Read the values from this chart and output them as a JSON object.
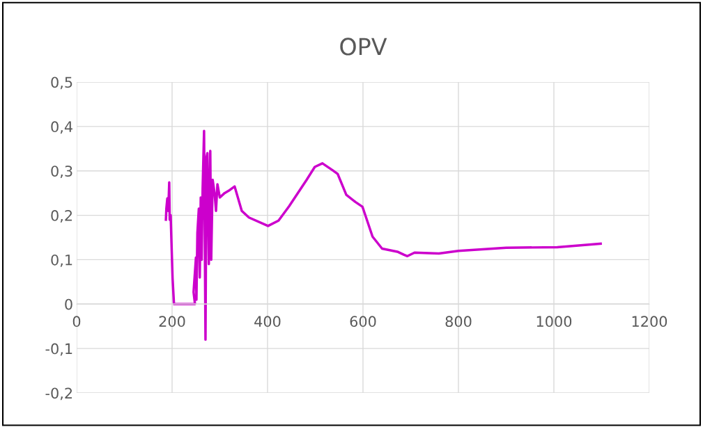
{
  "chart_data": {
    "type": "line",
    "title": "OPV",
    "grid": true,
    "legend": false,
    "marker": "none",
    "line_style": "solid",
    "xlim": [
      0,
      1200
    ],
    "xticks": [
      0,
      200,
      400,
      600,
      800,
      1000,
      1200
    ],
    "ylim": [
      -0.2,
      0.5
    ],
    "yticks": [
      {
        "value": -0.2,
        "label": "-0,2"
      },
      {
        "value": -0.1,
        "label": "-0,1"
      },
      {
        "value": 0,
        "label": "0"
      },
      {
        "value": 0.1,
        "label": "0,1"
      },
      {
        "value": 0.2,
        "label": "0,2"
      },
      {
        "value": 0.3,
        "label": "0,3"
      },
      {
        "value": 0.4,
        "label": "0,4"
      },
      {
        "value": 0.5,
        "label": "0,5"
      }
    ],
    "series": [
      {
        "color": "#cc00cc",
        "x": [
          187,
          188,
          190,
          192,
          194,
          195,
          197,
          201,
          204,
          248,
          245,
          250,
          251,
          253,
          256,
          258,
          260,
          262,
          264,
          267,
          270,
          272,
          274,
          277,
          280,
          282,
          285,
          289,
          292,
          295,
          300,
          310,
          321,
          331,
          346,
          361,
          401,
          423,
          445,
          482,
          499,
          515,
          537,
          547,
          565,
          584,
          599,
          620,
          640,
          672,
          686,
          693,
          708,
          759,
          800,
          900,
          1007,
          1098
        ],
        "values": [
          0.19,
          0.215,
          0.238,
          0.21,
          0.274,
          0.19,
          0.2,
          0.058,
          0,
          0,
          0.027,
          0.105,
          0.01,
          0.16,
          0.215,
          0.06,
          0.24,
          0.1,
          0.26,
          0.39,
          -0.08,
          0.33,
          0.34,
          0.09,
          0.345,
          0.1,
          0.28,
          0.25,
          0.21,
          0.27,
          0.24,
          0.25,
          0.257,
          0.265,
          0.21,
          0.195,
          0.176,
          0.188,
          0.22,
          0.28,
          0.309,
          0.317,
          0.301,
          0.293,
          0.246,
          0.23,
          0.219,
          0.152,
          0.125,
          0.118,
          0.111,
          0.108,
          0.116,
          0.114,
          0.12,
          0.127,
          0.128,
          0.136
        ]
      }
    ]
  }
}
